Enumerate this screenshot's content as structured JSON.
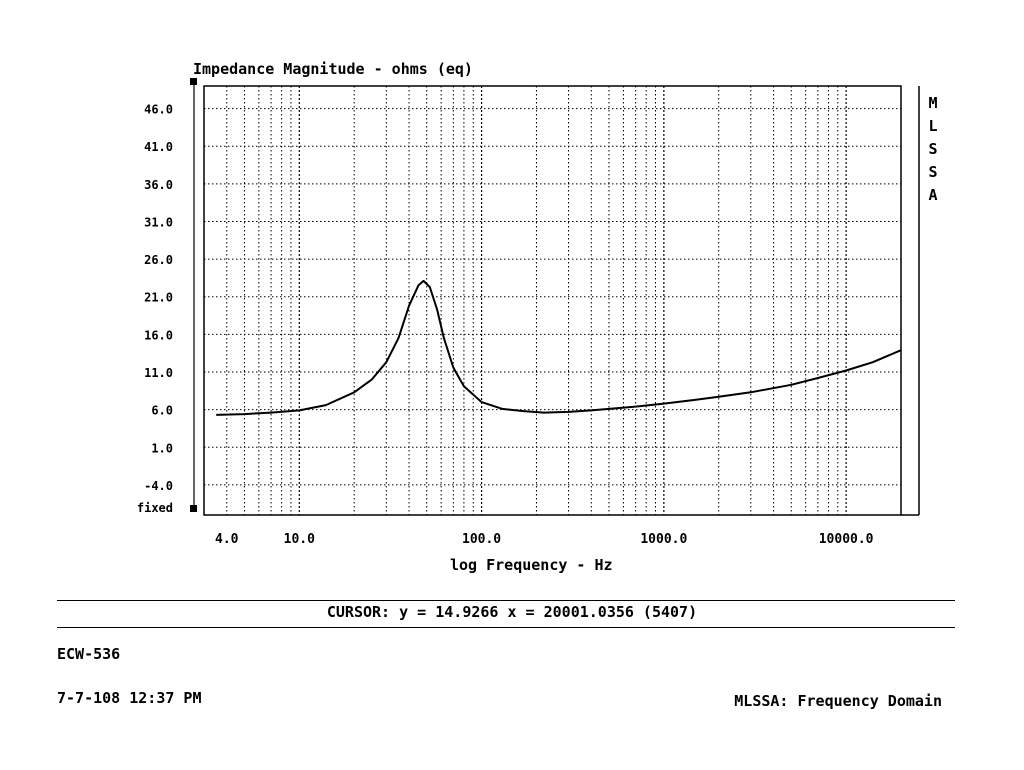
{
  "chart_data": {
    "type": "line",
    "title": "Impedance Magnitude - ohms (eq)",
    "xlabel": "log Frequency - Hz",
    "ylabel": "",
    "x_scale": "log",
    "xlim": [
      3.0,
      20000
    ],
    "ylim": [
      -8.0,
      49.0
    ],
    "grid": true,
    "y_ticks": [
      46.0,
      41.0,
      36.0,
      31.0,
      26.0,
      21.0,
      16.0,
      11.0,
      6.0,
      1.0,
      -4.0
    ],
    "y_tick_labels": [
      "46.0",
      "41.0",
      "36.0",
      "31.0",
      "26.0",
      "21.0",
      "16.0",
      "11.0",
      "6.0",
      "1.0",
      "-4.0"
    ],
    "y_bottom_label": "fixed",
    "x_ticks": [
      4.0,
      10.0,
      100.0,
      1000.0,
      10000.0
    ],
    "x_tick_labels": [
      "4.0",
      "10.0",
      "100.0",
      "1000.0",
      "10000.0"
    ],
    "series": [
      {
        "x": [
          3.5,
          5,
          7,
          10,
          14,
          20,
          25,
          30,
          35,
          40,
          45,
          48,
          52,
          57,
          62,
          70,
          80,
          100,
          130,
          170,
          220,
          300,
          400,
          500,
          700,
          1000,
          1500,
          2000,
          3000,
          5000,
          7000,
          10000,
          14000,
          20000
        ],
        "y": [
          5.3,
          5.4,
          5.6,
          5.9,
          6.6,
          8.3,
          10.0,
          12.3,
          15.5,
          19.8,
          22.5,
          23.1,
          22.3,
          19.3,
          15.6,
          11.6,
          9.1,
          7.0,
          6.1,
          5.8,
          5.6,
          5.7,
          5.9,
          6.1,
          6.4,
          6.8,
          7.3,
          7.7,
          8.3,
          9.3,
          10.2,
          11.2,
          12.3,
          13.9
        ]
      }
    ]
  },
  "side_label": [
    "M",
    "L",
    "S",
    "S",
    "A"
  ],
  "cursor_readout": "CURSOR: y = 14.9266 x = 20001.0356 (5407)",
  "file_id": "ECW-536",
  "date_time": "7-7-108 12:37 PM",
  "domain_label": "MLSSA: Frequency Domain"
}
